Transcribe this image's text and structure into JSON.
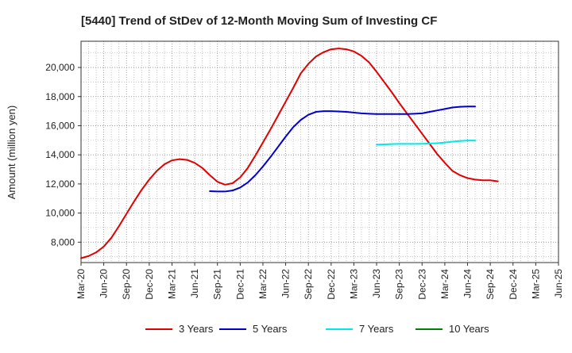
{
  "chart_data": {
    "type": "line",
    "title": "[5440]  Trend of StDev of 12-Month Moving Sum of Investing CF",
    "ylabel": "Amount (million yen)",
    "xlabel": "",
    "x_ticks": [
      "Mar-20",
      "Jun-20",
      "Sep-20",
      "Dec-20",
      "Mar-21",
      "Jun-21",
      "Sep-21",
      "Dec-21",
      "Mar-22",
      "Jun-22",
      "Sep-22",
      "Dec-22",
      "Mar-23",
      "Jun-23",
      "Sep-23",
      "Dec-23",
      "Mar-24",
      "Jun-24",
      "Sep-24",
      "Dec-24",
      "Mar-25",
      "Jun-25"
    ],
    "y_ticks": [
      8000,
      10000,
      12000,
      14000,
      16000,
      18000,
      20000
    ],
    "y_tick_labels": [
      "8,000",
      "10,000",
      "12,000",
      "14,000",
      "16,000",
      "18,000",
      "20,000"
    ],
    "ylim": [
      6600,
      21800
    ],
    "grid": true,
    "legend_position": "bottom",
    "series": [
      {
        "name": "3 Years",
        "color": "#e00000",
        "values": [
          6900,
          7050,
          7300,
          7700,
          8300,
          9100,
          9950,
          10800,
          11600,
          12300,
          12900,
          13350,
          13620,
          13700,
          13650,
          13450,
          13100,
          12600,
          12150,
          11950,
          12050,
          12450,
          13100,
          13950,
          14850,
          15750,
          16700,
          17650,
          18600,
          19600,
          20250,
          20750,
          21050,
          21250,
          21300,
          21250,
          21100,
          20800,
          20350,
          19700,
          19000,
          18300,
          17550,
          16850,
          16150,
          15450,
          14750,
          14050,
          13450,
          12900,
          12600,
          12400,
          12300,
          12250,
          12250,
          12180
        ]
      },
      {
        "name": "5 Years",
        "color": "#0000cc",
        "values": [
          null,
          null,
          null,
          null,
          null,
          null,
          null,
          null,
          null,
          null,
          null,
          null,
          null,
          null,
          null,
          null,
          null,
          11500,
          11480,
          11480,
          11550,
          11750,
          12100,
          12600,
          13200,
          13850,
          14550,
          15250,
          15900,
          16400,
          16750,
          16950,
          17000,
          17000,
          16980,
          16950,
          16900,
          16850,
          16820,
          16800,
          16800,
          16800,
          16800,
          16800,
          16820,
          16850,
          16950,
          17050,
          17150,
          17250,
          17300,
          17320,
          17320
        ]
      },
      {
        "name": "7 Years",
        "color": "#00e8e8",
        "values": [
          null,
          null,
          null,
          null,
          null,
          null,
          null,
          null,
          null,
          null,
          null,
          null,
          null,
          null,
          null,
          null,
          null,
          null,
          null,
          null,
          null,
          null,
          null,
          null,
          null,
          null,
          null,
          null,
          null,
          null,
          null,
          null,
          null,
          null,
          null,
          null,
          null,
          null,
          null,
          14700,
          14720,
          14740,
          14750,
          14750,
          14750,
          14760,
          14780,
          14800,
          14850,
          14900,
          14950,
          14980,
          14980
        ]
      },
      {
        "name": "10 Years",
        "color": "#008000",
        "values": []
      }
    ]
  }
}
